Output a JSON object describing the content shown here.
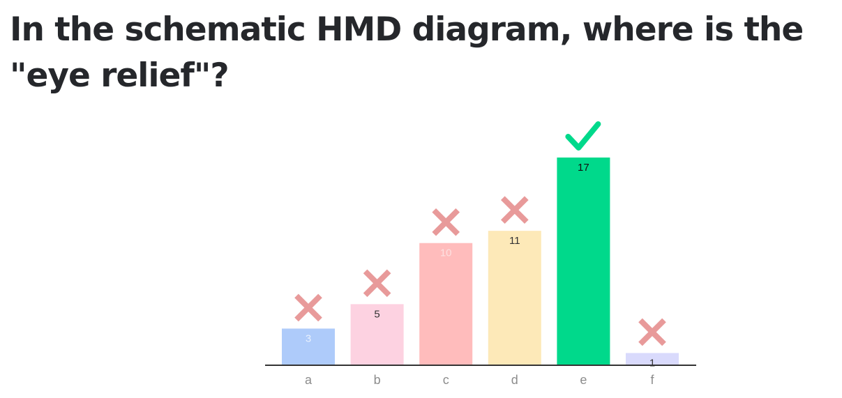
{
  "question": {
    "text": "In the schematic HMD diagram, where is the \"eye relief\"?"
  },
  "chart_data": {
    "type": "bar",
    "title": "",
    "xlabel": "",
    "ylabel": "",
    "ylim": [
      0,
      17
    ],
    "grid": false,
    "categories": [
      "a",
      "b",
      "c",
      "d",
      "e",
      "f"
    ],
    "values": [
      3,
      5,
      10,
      11,
      17,
      1
    ],
    "correct": [
      false,
      false,
      false,
      false,
      true,
      false
    ],
    "colors": [
      "#aecbfa",
      "#fdd2e1",
      "#ffbcbc",
      "#fde9b8",
      "#00d98b",
      "#d9dafc"
    ],
    "label_colors": [
      "#e8f0fe",
      "#333333",
      "#fde0e0",
      "#333333",
      "#111111",
      "#333333"
    ],
    "markers": {
      "correct_color": "#00d98b",
      "incorrect_color": "#e89a9a",
      "correct_icon": "check-icon",
      "incorrect_icon": "cross-icon"
    }
  }
}
